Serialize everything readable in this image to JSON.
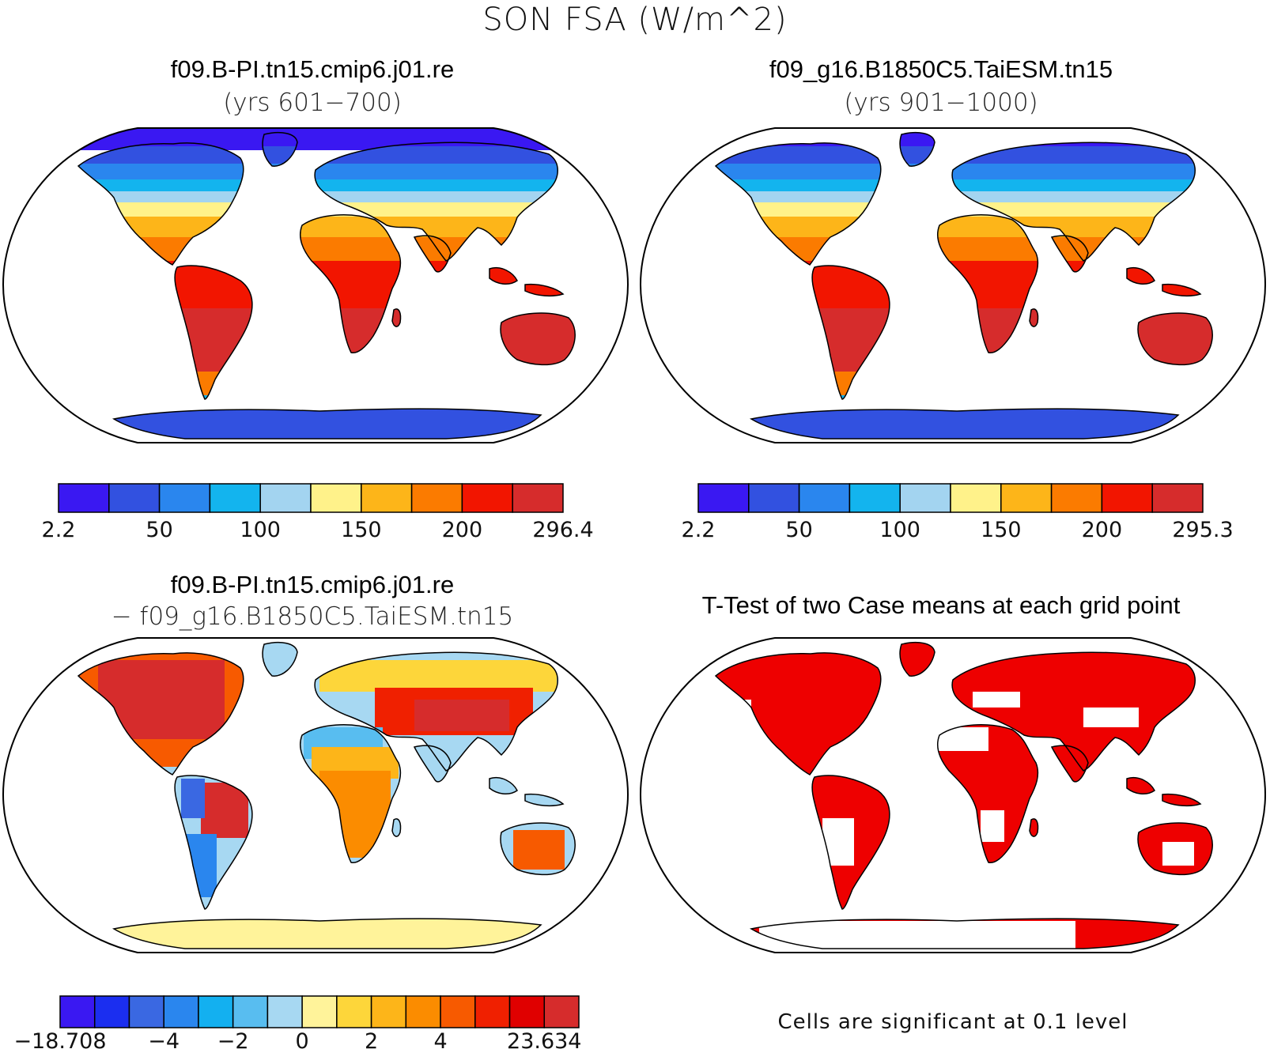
{
  "figure": {
    "title": "SON FSA (W/m^2)"
  },
  "panels": {
    "p1": {
      "title": "f09.B-PI.tn15.cmip6.j01.re",
      "subtitle": "(yrs 601−700)"
    },
    "p2": {
      "title": "f09_g16.B1850C5.TaiESM.tn15",
      "subtitle": "(yrs 901−1000)"
    },
    "p3": {
      "title": "f09.B-PI.tn15.cmip6.j01.re",
      "subtitle": "− f09_g16.B1850C5.TaiESM.tn15"
    },
    "p4": {
      "title": "T-Test of two Case means at each grid point",
      "footnote": "Cells are significant at 0.1 level",
      "significant_color": "#ee0000"
    }
  },
  "colorbars": {
    "cb1": {
      "colors": [
        "#3a18f2",
        "#3251e0",
        "#2a86ee",
        "#13b4ee",
        "#a3d4f0",
        "#fff28a",
        "#fdb519",
        "#fb7b00",
        "#f21500",
        "#d62c2c"
      ],
      "labels": [
        "2.2",
        "50",
        "100",
        "150",
        "200",
        "296.4"
      ],
      "label_at_boundary": [
        0,
        2,
        4,
        6,
        8,
        10
      ]
    },
    "cb2": {
      "colors": [
        "#3a18f2",
        "#3251e0",
        "#2a86ee",
        "#13b4ee",
        "#a3d4f0",
        "#fff28a",
        "#fdb519",
        "#fb7b00",
        "#f21500",
        "#d62c2c"
      ],
      "labels": [
        "2.2",
        "50",
        "100",
        "150",
        "200",
        "295.3"
      ],
      "label_at_boundary": [
        0,
        2,
        4,
        6,
        8,
        10
      ]
    },
    "cb3": {
      "colors": [
        "#3a18f2",
        "#1b2ef0",
        "#3a68e2",
        "#2a86ee",
        "#13b0f0",
        "#58bdf0",
        "#a7d8f2",
        "#fff39a",
        "#fdd63a",
        "#fdb519",
        "#fb8c00",
        "#f75a00",
        "#f02000",
        "#e00000",
        "#d62c2c"
      ],
      "labels": [
        "−18.708",
        "−4",
        "−2",
        "0",
        "2",
        "4",
        "23.634"
      ],
      "label_at_boundary": [
        0,
        3,
        5,
        7,
        9,
        11,
        14
      ]
    }
  }
}
